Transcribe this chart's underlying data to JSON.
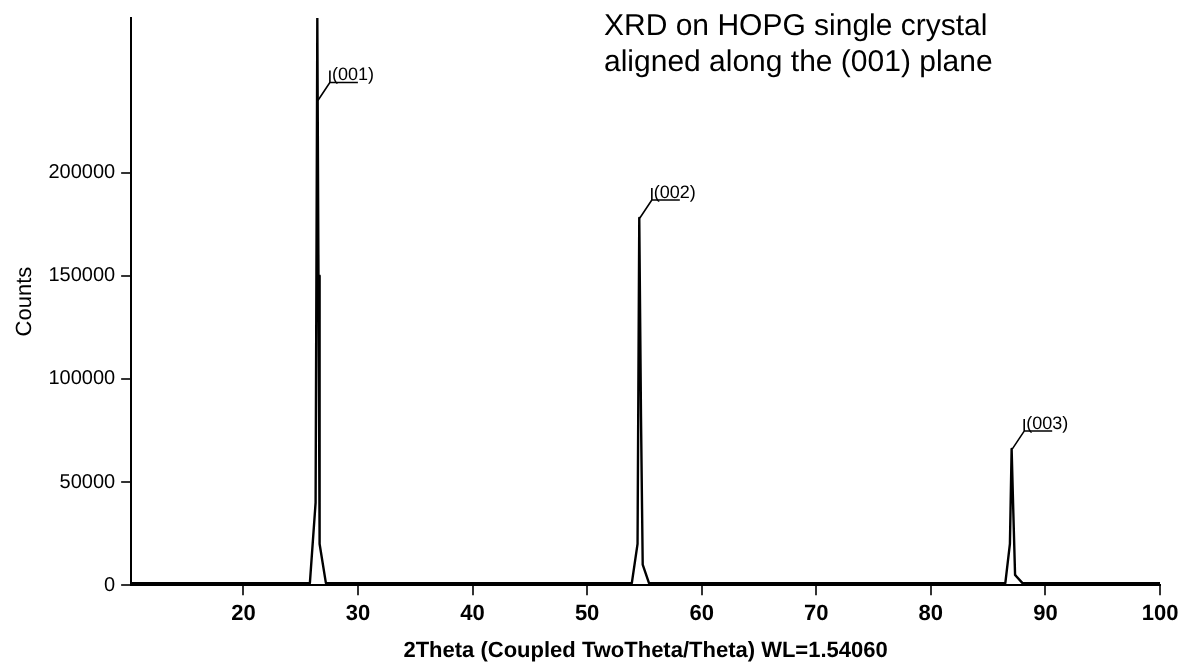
{
  "chart_data": {
    "type": "line",
    "title": "XRD on HOPG single crystal aligned along the (001) plane",
    "xlabel": "2Theta (Coupled TwoTheta/Theta) WL=1.54060",
    "ylabel": "Counts",
    "series": [
      {
        "color": "#000000",
        "x": [
          10.2,
          25.8,
          26.3,
          26.45,
          26.55,
          26.65,
          27.2,
          53.9,
          54.4,
          54.55,
          54.7,
          54.85,
          55.4,
          86.5,
          86.9,
          87.05,
          87.2,
          87.35,
          88,
          100
        ],
        "values": [
          1000,
          1000,
          40000,
          275000,
          150000,
          20000,
          1000,
          1000,
          20000,
          178000,
          82000,
          10000,
          1000,
          1000,
          20000,
          66000,
          35000,
          5000,
          1000,
          1000
        ]
      }
    ],
    "xlim": [
      10.2,
      100
    ],
    "ylim": [
      0,
      275000
    ],
    "xticks": [
      20,
      30,
      40,
      50,
      60,
      70,
      80,
      90,
      100
    ],
    "yticks": [
      0,
      50000,
      100000,
      150000,
      200000
    ],
    "annotations": [
      {
        "text": "(001)",
        "x": 26.5,
        "y": 235000
      },
      {
        "text": "(002)",
        "x": 54.6,
        "y": 178000
      },
      {
        "text": "(003)",
        "x": 87.1,
        "y": 66000
      }
    ],
    "grid": false,
    "legend": false,
    "marker": "none",
    "line_style": "solid"
  }
}
